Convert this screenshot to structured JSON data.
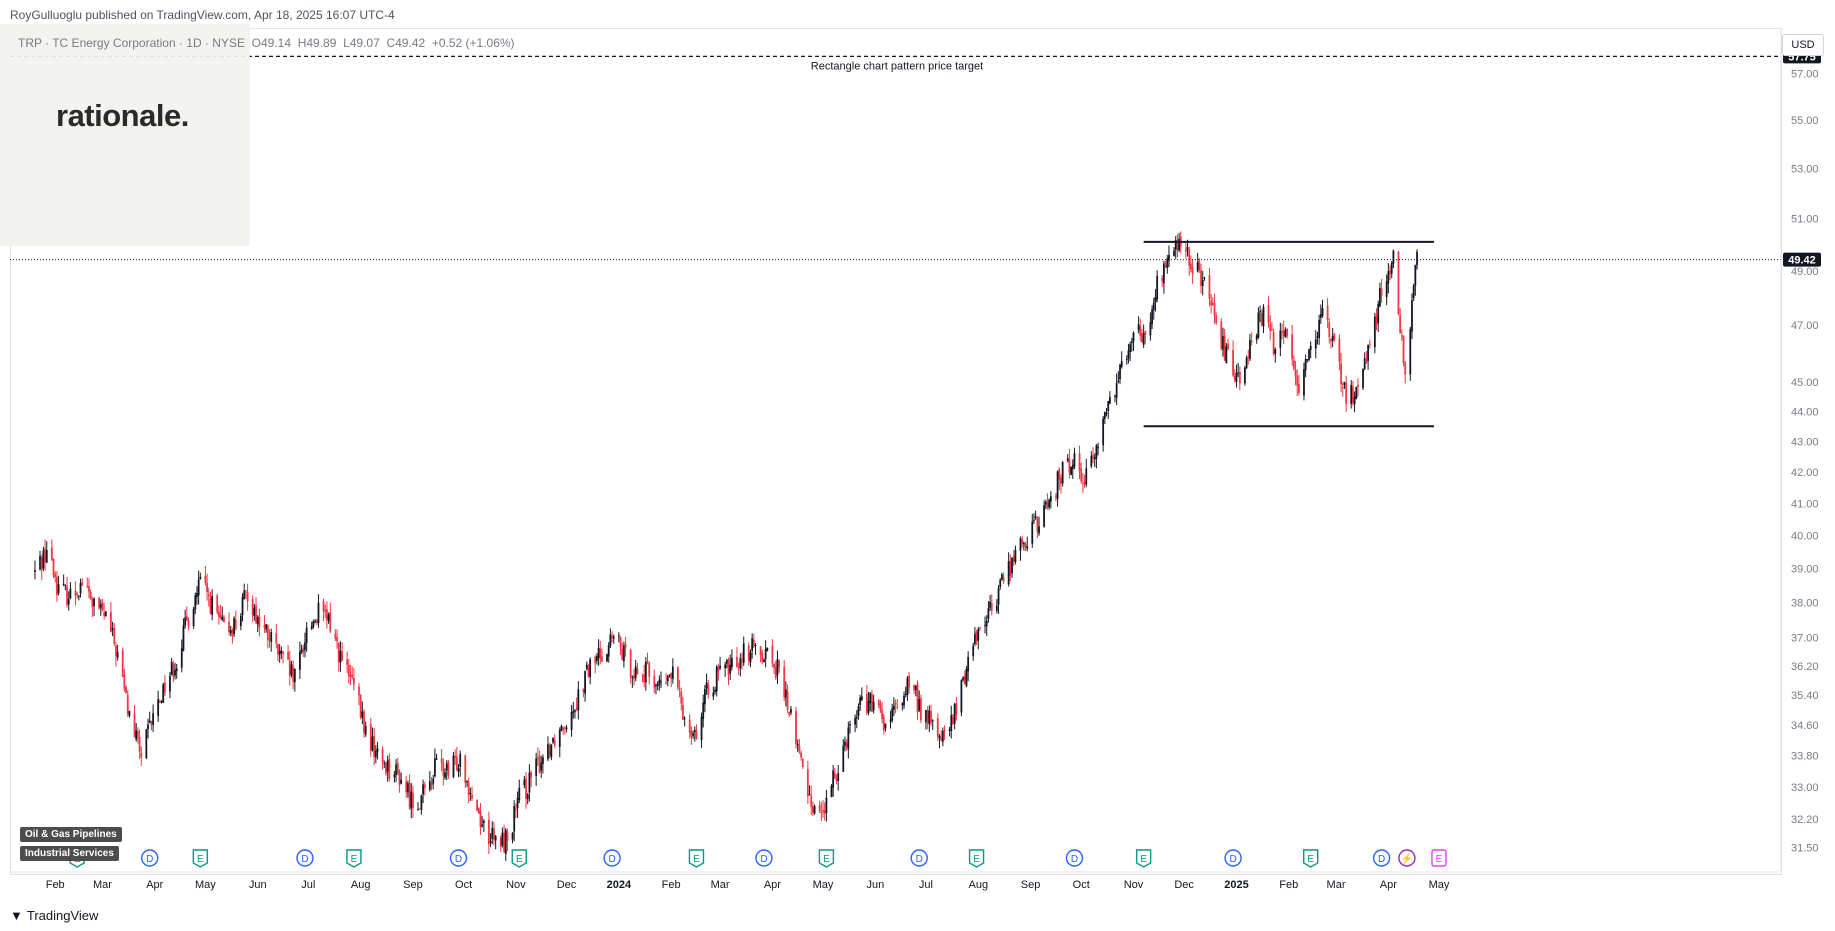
{
  "header": {
    "published": "RoyGulluoglu published on TradingView.com,",
    "datetime": "Apr 18, 2025 16:07 UTC-4"
  },
  "symbol": {
    "name": "TRP · TC Energy Corporation · 1D · NYSE",
    "open": "O49.14",
    "high": "H49.89",
    "low": "L49.07",
    "close": "C49.42",
    "change": "+0.52 (+1.06%)"
  },
  "logo": {
    "text": "rationale."
  },
  "currency_button": "USD",
  "sector_tags": [
    "Oil & Gas Pipelines",
    "Industrial Services"
  ],
  "footer": {
    "brand": "TradingView"
  },
  "colors": {
    "up": "#131722",
    "down": "#f23645",
    "earnings": "#089981",
    "dividend": "#2962ff",
    "split": "#9c27b0",
    "price_tag": "#131722"
  },
  "chart_data": {
    "type": "candlestick",
    "symbol": "TRP",
    "timeframe": "1D",
    "ylim": [
      31.2,
      58.3
    ],
    "y_scale": "log",
    "y_ticks": [
      "31.50",
      "32.20",
      "33.00",
      "33.80",
      "34.60",
      "35.40",
      "36.20",
      "37.00",
      "38.00",
      "39.00",
      "40.00",
      "41.00",
      "42.00",
      "43.00",
      "44.00",
      "45.00",
      "47.00",
      "49.00",
      "51.00",
      "53.00",
      "55.00",
      "57.00"
    ],
    "x_ticks": [
      "Feb",
      "Mar",
      "Apr",
      "May",
      "Jun",
      "Jul",
      "Aug",
      "Sep",
      "Oct",
      "Nov",
      "Dec",
      "2024",
      "Feb",
      "Mar",
      "Apr",
      "May",
      "Jun",
      "Jul",
      "Aug",
      "Sep",
      "Oct",
      "Nov",
      "Dec",
      "2025",
      "Feb",
      "Mar",
      "Apr",
      "May"
    ],
    "current_price": {
      "value": 49.42,
      "label": "49.42"
    },
    "target_price": {
      "value": 57.75,
      "label": "57.75",
      "annotation": "Rectangle chart pattern price target"
    },
    "rectangle_pattern": {
      "resistance": 50.1,
      "support": 43.5,
      "start": "2024-11-07",
      "end": "2025-04-28"
    },
    "path": [
      [
        "2023-01-20",
        38.9
      ],
      [
        "2023-01-27",
        39.6
      ],
      [
        "2023-02-03",
        38.4
      ],
      [
        "2023-02-10",
        38.2
      ],
      [
        "2023-02-17",
        38.6
      ],
      [
        "2023-02-24",
        37.9
      ],
      [
        "2023-03-03",
        37.6
      ],
      [
        "2023-03-10",
        36.5
      ],
      [
        "2023-03-17",
        34.8
      ],
      [
        "2023-03-24",
        33.8
      ],
      [
        "2023-03-31",
        34.8
      ],
      [
        "2023-04-07",
        35.7
      ],
      [
        "2023-04-14",
        36.4
      ],
      [
        "2023-04-21",
        37.6
      ],
      [
        "2023-04-28",
        38.6
      ],
      [
        "2023-05-05",
        37.9
      ],
      [
        "2023-05-12",
        37.2
      ],
      [
        "2023-05-19",
        37.4
      ],
      [
        "2023-05-26",
        38.3
      ],
      [
        "2023-06-02",
        37.4
      ],
      [
        "2023-06-09",
        36.9
      ],
      [
        "2023-06-16",
        36.3
      ],
      [
        "2023-06-23",
        35.8
      ],
      [
        "2023-06-30",
        37.2
      ],
      [
        "2023-07-07",
        37.7
      ],
      [
        "2023-07-14",
        37.4
      ],
      [
        "2023-07-21",
        36.3
      ],
      [
        "2023-07-28",
        35.6
      ],
      [
        "2023-08-04",
        34.4
      ],
      [
        "2023-08-11",
        33.8
      ],
      [
        "2023-08-18",
        33.5
      ],
      [
        "2023-08-25",
        33.2
      ],
      [
        "2023-09-01",
        32.6
      ],
      [
        "2023-09-08",
        32.8
      ],
      [
        "2023-09-15",
        33.6
      ],
      [
        "2023-09-22",
        33.3
      ],
      [
        "2023-09-29",
        33.8
      ],
      [
        "2023-10-06",
        32.8
      ],
      [
        "2023-10-13",
        32.0
      ],
      [
        "2023-10-20",
        31.6
      ],
      [
        "2023-10-27",
        31.7
      ],
      [
        "2023-11-03",
        32.7
      ],
      [
        "2023-11-10",
        33.2
      ],
      [
        "2023-11-17",
        33.8
      ],
      [
        "2023-11-24",
        34.3
      ],
      [
        "2023-12-01",
        34.8
      ],
      [
        "2023-12-08",
        35.4
      ],
      [
        "2023-12-15",
        36.2
      ],
      [
        "2023-12-22",
        36.6
      ],
      [
        "2023-12-29",
        37.0
      ],
      [
        "2024-01-05",
        36.4
      ],
      [
        "2024-01-12",
        36.0
      ],
      [
        "2024-01-19",
        36.0
      ],
      [
        "2024-01-26",
        35.6
      ],
      [
        "2024-02-02",
        36.0
      ],
      [
        "2024-02-09",
        34.8
      ],
      [
        "2024-02-16",
        34.4
      ],
      [
        "2024-02-23",
        35.6
      ],
      [
        "2024-03-01",
        36.0
      ],
      [
        "2024-03-08",
        36.2
      ],
      [
        "2024-03-15",
        36.6
      ],
      [
        "2024-03-22",
        36.7
      ],
      [
        "2024-03-29",
        36.6
      ],
      [
        "2024-04-05",
        36.0
      ],
      [
        "2024-04-12",
        34.8
      ],
      [
        "2024-04-19",
        33.4
      ],
      [
        "2024-04-26",
        32.4
      ],
      [
        "2024-05-03",
        32.5
      ],
      [
        "2024-05-10",
        33.6
      ],
      [
        "2024-05-17",
        34.6
      ],
      [
        "2024-05-24",
        35.3
      ],
      [
        "2024-05-31",
        35.1
      ],
      [
        "2024-06-07",
        34.6
      ],
      [
        "2024-06-14",
        35.0
      ],
      [
        "2024-06-21",
        35.8
      ],
      [
        "2024-06-28",
        35.0
      ],
      [
        "2024-07-05",
        34.6
      ],
      [
        "2024-07-12",
        34.2
      ],
      [
        "2024-07-19",
        35.0
      ],
      [
        "2024-07-26",
        36.4
      ],
      [
        "2024-08-02",
        37.4
      ],
      [
        "2024-08-09",
        37.8
      ],
      [
        "2024-08-16",
        38.8
      ],
      [
        "2024-08-23",
        39.4
      ],
      [
        "2024-08-30",
        40.0
      ],
      [
        "2024-09-06",
        40.4
      ],
      [
        "2024-09-13",
        41.2
      ],
      [
        "2024-09-20",
        42.0
      ],
      [
        "2024-09-27",
        42.4
      ],
      [
        "2024-10-04",
        41.8
      ],
      [
        "2024-10-11",
        43.0
      ],
      [
        "2024-10-18",
        44.4
      ],
      [
        "2024-10-25",
        45.6
      ],
      [
        "2024-11-01",
        47.0
      ],
      [
        "2024-11-08",
        46.4
      ],
      [
        "2024-11-15",
        48.4
      ],
      [
        "2024-11-22",
        49.6
      ],
      [
        "2024-11-29",
        50.0
      ],
      [
        "2024-12-06",
        49.2
      ],
      [
        "2024-12-13",
        48.6
      ],
      [
        "2024-12-20",
        46.8
      ],
      [
        "2024-12-27",
        45.8
      ],
      [
        "2025-01-03",
        45.2
      ],
      [
        "2025-01-10",
        46.6
      ],
      [
        "2025-01-17",
        47.4
      ],
      [
        "2025-01-24",
        46.2
      ],
      [
        "2025-01-31",
        46.8
      ],
      [
        "2025-02-07",
        44.8
      ],
      [
        "2025-02-14",
        46.4
      ],
      [
        "2025-02-21",
        47.2
      ],
      [
        "2025-02-28",
        46.2
      ],
      [
        "2025-03-07",
        44.4
      ],
      [
        "2025-03-14",
        44.8
      ],
      [
        "2025-03-21",
        46.4
      ],
      [
        "2025-03-28",
        48.2
      ],
      [
        "2025-04-04",
        49.4
      ],
      [
        "2025-04-11",
        45.0
      ],
      [
        "2025-04-18",
        49.42
      ]
    ],
    "events": [
      [
        "2023-02-14",
        "E"
      ],
      [
        "2023-03-29",
        "D"
      ],
      [
        "2023-04-28",
        "E"
      ],
      [
        "2023-06-29",
        "D"
      ],
      [
        "2023-07-28",
        "E"
      ],
      [
        "2023-09-28",
        "D"
      ],
      [
        "2023-11-03",
        "E"
      ],
      [
        "2023-12-28",
        "D"
      ],
      [
        "2024-02-16",
        "E"
      ],
      [
        "2024-03-27",
        "D"
      ],
      [
        "2024-05-03",
        "E"
      ],
      [
        "2024-06-27",
        "D"
      ],
      [
        "2024-07-31",
        "E"
      ],
      [
        "2024-09-27",
        "D"
      ],
      [
        "2024-11-07",
        "E"
      ],
      [
        "2024-12-30",
        "D"
      ],
      [
        "2025-02-14",
        "E"
      ],
      [
        "2025-03-28",
        "D"
      ],
      [
        "2025-04-12",
        "S"
      ],
      [
        "2025-05-01",
        "E"
      ]
    ]
  }
}
